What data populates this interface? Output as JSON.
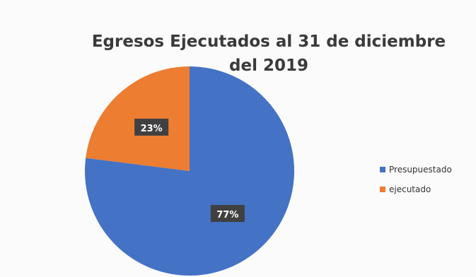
{
  "chart_data": {
    "type": "pie",
    "title_line1": "Egresos Ejecutados al 31 de diciembre",
    "title_line2": "del 2019",
    "slices": [
      {
        "label": "Presupuestado",
        "value": 77,
        "display": "77%",
        "color": "#4472C4"
      },
      {
        "label": "ejecutado",
        "value": 23,
        "display": "23%",
        "color": "#ED7D31"
      }
    ],
    "legend_position": "right"
  }
}
